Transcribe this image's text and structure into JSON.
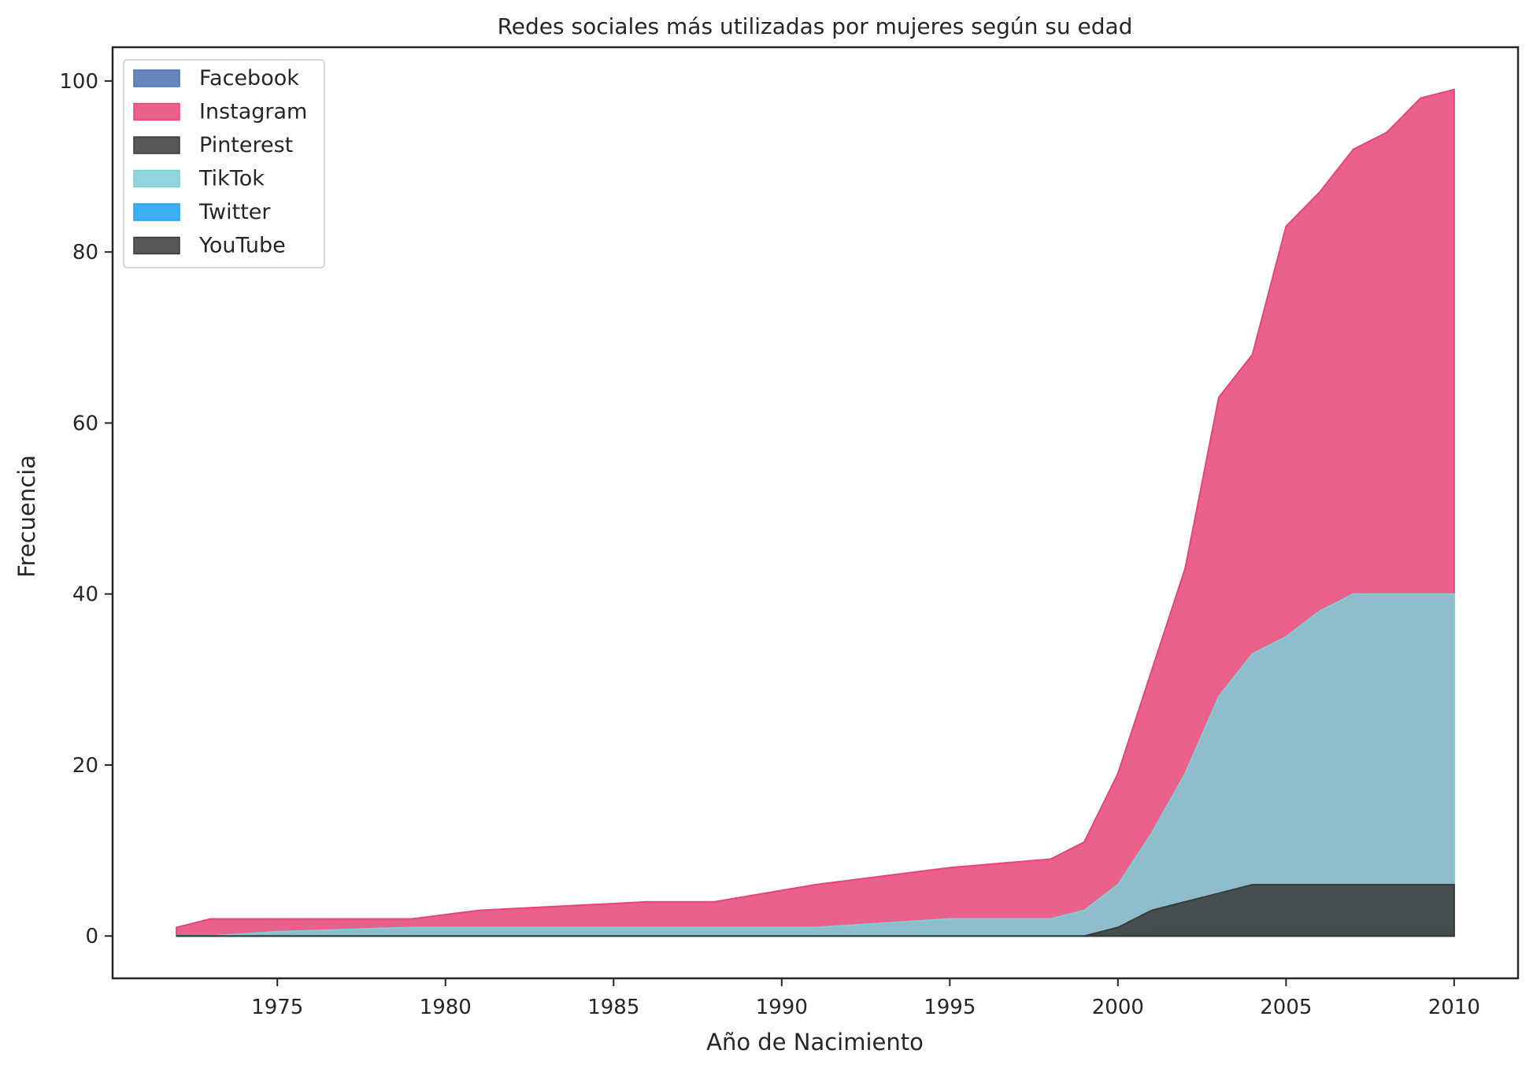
{
  "chart_data": {
    "type": "area",
    "stacked": false,
    "title": "Redes sociales más utilizadas por mujeres según su edad",
    "xlabel": "Año de Nacimiento",
    "ylabel": "Frecuencia",
    "xlim": [
      1970.1,
      2011.9
    ],
    "ylim": [
      -4.95,
      103.95
    ],
    "xticks": [
      1975,
      1980,
      1985,
      1990,
      1995,
      2000,
      2005,
      2010
    ],
    "yticks": [
      0,
      20,
      40,
      60,
      80,
      100
    ],
    "grid": false,
    "legend_position": "top-left",
    "series": [
      {
        "name": "Facebook",
        "color": "#4c72b0",
        "x": [
          1972,
          2010
        ],
        "values": [
          0,
          0
        ]
      },
      {
        "name": "Instagram",
        "color": "#e64578",
        "x": [
          1972,
          1973,
          1975,
          1979,
          1981,
          1986,
          1988,
          1991,
          1995,
          1998,
          1999,
          2000,
          2001,
          2002,
          2003,
          2004,
          2005,
          2006,
          2007,
          2008,
          2009,
          2010
        ],
        "values": [
          1,
          2,
          2,
          2,
          3,
          4,
          4,
          6,
          8,
          9,
          11,
          19,
          31,
          43,
          63,
          68,
          83,
          87,
          92,
          94,
          98,
          99
        ]
      },
      {
        "name": "Pinterest",
        "color": "#3a3a3a",
        "x": [
          1972,
          2000,
          2001,
          2010
        ],
        "values": [
          0,
          0,
          1,
          1
        ]
      },
      {
        "name": "TikTok",
        "color": "#7fcdd6",
        "x": [
          1972,
          1973,
          1975,
          1979,
          1991,
          1995,
          1998,
          1999,
          2000,
          2001,
          2002,
          2003,
          2004,
          2005,
          2006,
          2007,
          2010
        ],
        "values": [
          0,
          0,
          0.5,
          1,
          1,
          2,
          2,
          3,
          6,
          12,
          19,
          28,
          33,
          35,
          38,
          40,
          40
        ]
      },
      {
        "name": "Twitter",
        "color": "#1da1f2",
        "x": [
          1972,
          2010
        ],
        "values": [
          0,
          0
        ]
      },
      {
        "name": "YouTube",
        "color": "#3a3a3a",
        "x": [
          1972,
          1999,
          2000,
          2001,
          2002,
          2003,
          2004,
          2010
        ],
        "values": [
          0,
          0,
          1,
          3,
          4,
          5,
          6,
          6
        ]
      }
    ]
  }
}
